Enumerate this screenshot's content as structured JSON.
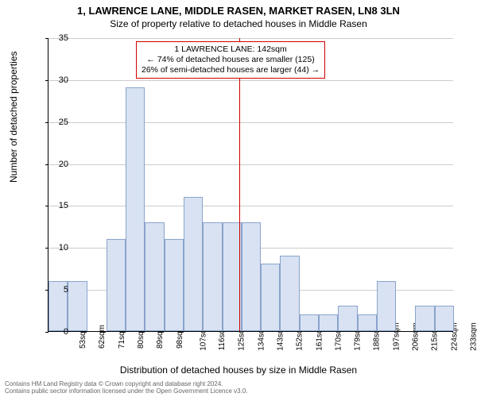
{
  "title": "1, LAWRENCE LANE, MIDDLE RASEN, MARKET RASEN, LN8 3LN",
  "subtitle": "Size of property relative to detached houses in Middle Rasen",
  "yaxis_label": "Number of detached properties",
  "xaxis_label": "Distribution of detached houses by size in Middle Rasen",
  "footer_line1": "Contains HM Land Registry data © Crown copyright and database right 2024.",
  "footer_line2": "Contains public sector information licensed under the Open Government Licence v3.0.",
  "chart": {
    "type": "histogram",
    "ylim": [
      0,
      35
    ],
    "ytick_step": 5,
    "bar_fill": "#d8e2f2",
    "bar_border": "#8aa3cc",
    "grid_color": "#cccccc",
    "refline_color": "#d00000",
    "refline_x": 142,
    "x_start": 53,
    "x_step": 9,
    "n_bars": 21,
    "values": [
      6,
      6,
      0,
      11,
      29,
      13,
      11,
      16,
      13,
      13,
      13,
      8,
      9,
      2,
      2,
      3,
      2,
      6,
      0,
      3,
      3
    ],
    "xticks_suffix": "sqm"
  },
  "annotation": {
    "line1": "1 LAWRENCE LANE: 142sqm",
    "line2": "← 74% of detached houses are smaller (125)",
    "line3": "26% of semi-detached houses are larger (44) →"
  }
}
